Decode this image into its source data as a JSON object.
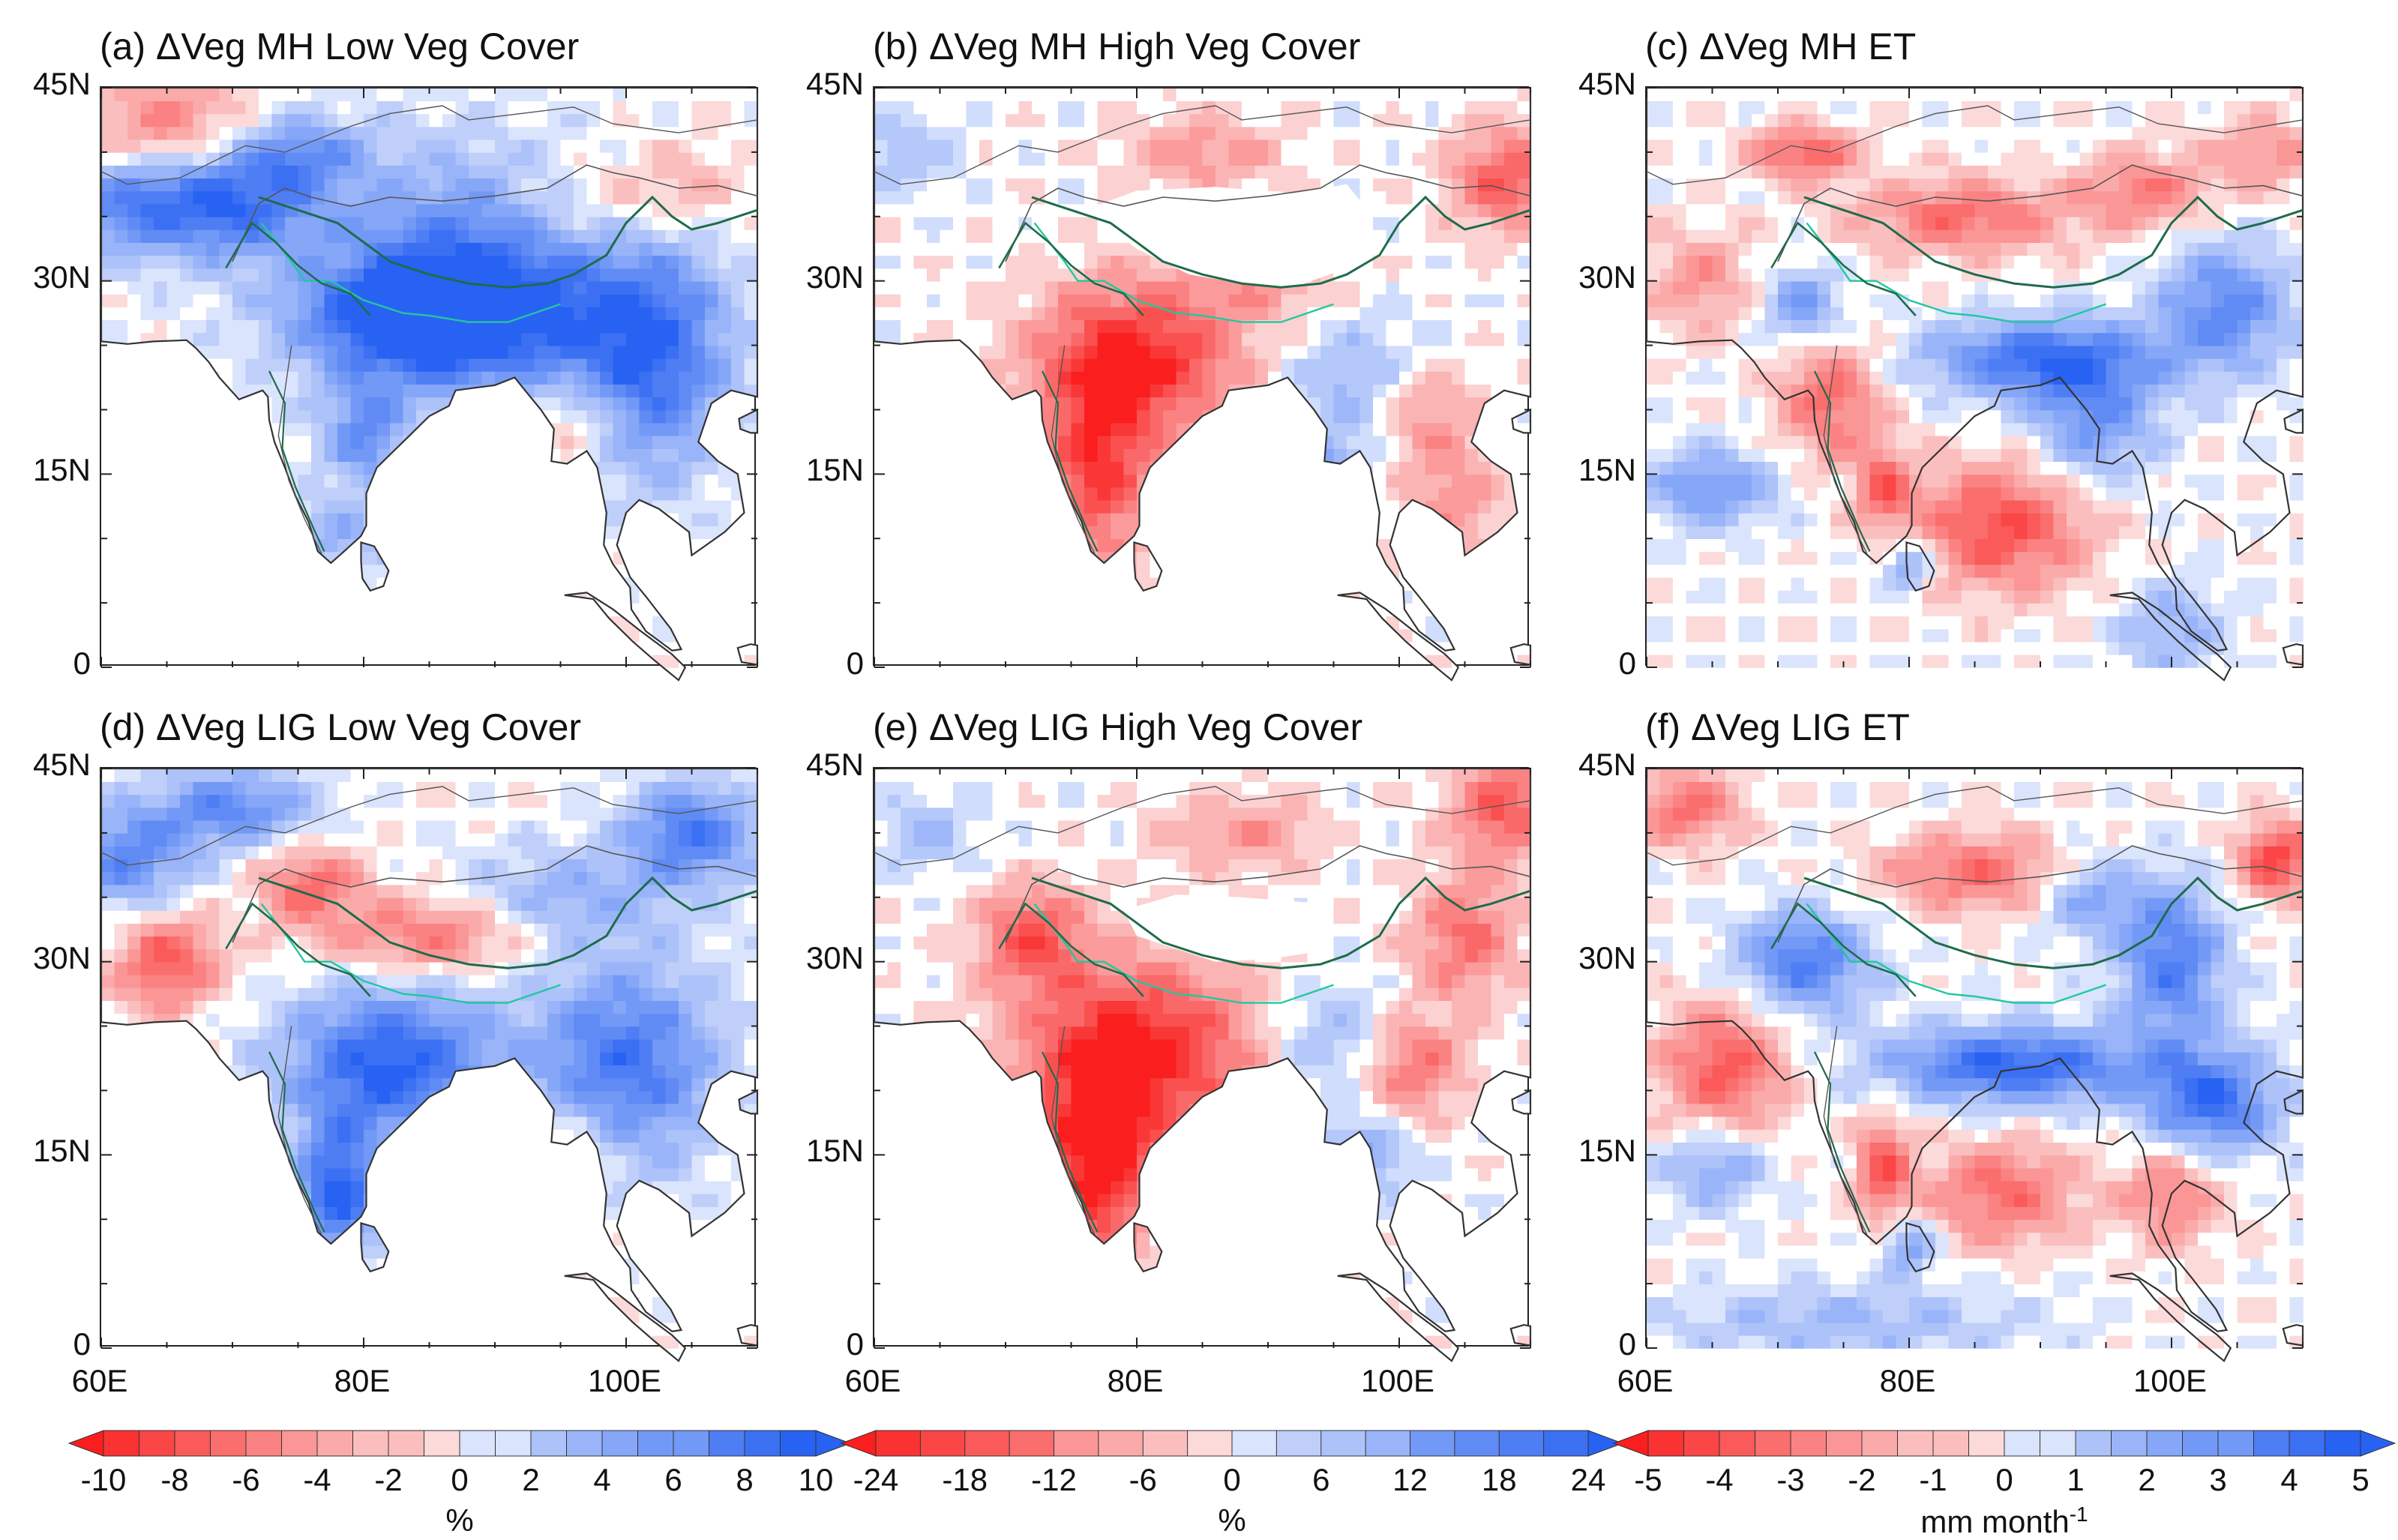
{
  "panels": [
    {
      "title": "(a) ΔVeg MH Low Veg Cover",
      "kind": "low",
      "scheme": "mh",
      "lat_labels": [
        "45N",
        "30N",
        "15N",
        "0"
      ]
    },
    {
      "title": "(b) ΔVeg MH High Veg Cover",
      "kind": "high",
      "scheme": "mh",
      "lat_labels": [
        "45N",
        "30N",
        "15N",
        "0"
      ]
    },
    {
      "title": "(c) ΔVeg MH ET",
      "kind": "et",
      "scheme": "mh",
      "lat_labels": [
        "45N",
        "30N",
        "15N",
        "0"
      ]
    },
    {
      "title": "(d) ΔVeg LIG Low Veg Cover",
      "kind": "low",
      "scheme": "lig",
      "lat_labels": [
        "45N",
        "30N",
        "15N",
        "0"
      ]
    },
    {
      "title": "(e) ΔVeg LIG High Veg Cover",
      "kind": "high",
      "scheme": "lig",
      "lat_labels": [
        "45N",
        "30N",
        "15N",
        "0"
      ]
    },
    {
      "title": "(f) ΔVeg LIG ET",
      "kind": "et",
      "scheme": "lig",
      "lat_labels": [
        "45N",
        "30N",
        "15N",
        "0"
      ]
    }
  ],
  "lon_labels": [
    "60E",
    "80E",
    "100E"
  ],
  "map_extent": {
    "lon": [
      60,
      110
    ],
    "lat": [
      0,
      45
    ]
  },
  "colorbars": [
    {
      "ticks": [
        "-10",
        "-8",
        "-6",
        "-4",
        "-2",
        "0",
        "2",
        "4",
        "6",
        "8",
        "10"
      ],
      "unit": "%"
    },
    {
      "ticks": [
        "-24",
        "-18",
        "-12",
        "-6",
        "0",
        "6",
        "12",
        "18",
        "24"
      ],
      "unit": "%"
    },
    {
      "ticks": [
        "-5",
        "-4",
        "-3",
        "-2",
        "-1",
        "0",
        "1",
        "2",
        "3",
        "4",
        "5"
      ],
      "unit_main": "mm month",
      "unit_sup": "-1"
    }
  ],
  "colors": {
    "strong_red": "#fa1e1e",
    "light_red": "#fbc8c8",
    "white": "#ffffff",
    "light_blue": "#c8d6fb",
    "strong_blue": "#2862f2",
    "tibet_contour": "#1f6b4a",
    "tibet_contour_light": "#20c8a0"
  }
}
